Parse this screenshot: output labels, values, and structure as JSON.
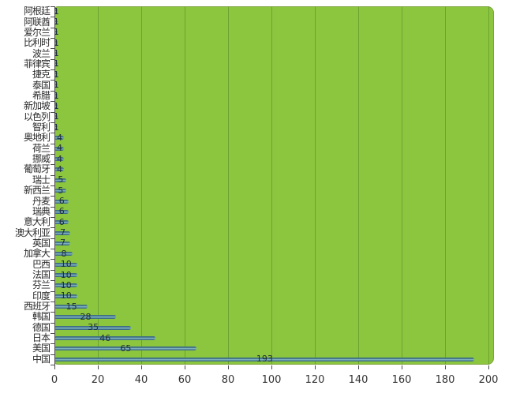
{
  "chart_data": {
    "type": "bar",
    "orientation": "horizontal",
    "title": "",
    "xlabel": "",
    "ylabel": "",
    "categories": [
      "阿根廷",
      "阿联酋",
      "爱尔兰",
      "比利时",
      "波兰",
      "菲律宾",
      "捷克",
      "泰国",
      "希腊",
      "新加坡",
      "以色列",
      "智利",
      "奥地利",
      "荷兰",
      "挪威",
      "葡萄牙",
      "瑞士",
      "新西兰",
      "丹麦",
      "瑞典",
      "意大利",
      "澳大利亚",
      "英国",
      "加拿大",
      "巴西",
      "法国",
      "芬兰",
      "印度",
      "西班牙",
      "韩国",
      "德国",
      "日本",
      "美国",
      "中国"
    ],
    "values": [
      1,
      1,
      1,
      1,
      1,
      1,
      1,
      1,
      1,
      1,
      1,
      1,
      4,
      4,
      4,
      4,
      5,
      5,
      6,
      6,
      6,
      7,
      7,
      8,
      10,
      10,
      10,
      10,
      15,
      28,
      35,
      46,
      65,
      193
    ],
    "data_labels_visible": true,
    "x_ticks": [
      0,
      20,
      40,
      60,
      80,
      100,
      120,
      140,
      160,
      180,
      200
    ],
    "xlim": [
      0,
      202
    ],
    "grid": "vertical",
    "legend": "none",
    "colors": {
      "page_bg": "#ffffff",
      "plot_bg": "#8cc63e",
      "grid": "#6da232",
      "plot_border": "#7da23e",
      "bar_dark": "#2e5f71",
      "bar_mid": "#4d7f96",
      "bar_light": "#8abccb",
      "axis": "#4a4a4a",
      "value_text": "#1f2d36",
      "tick_text": "#333333",
      "category_text": "#2a2a2a"
    }
  }
}
